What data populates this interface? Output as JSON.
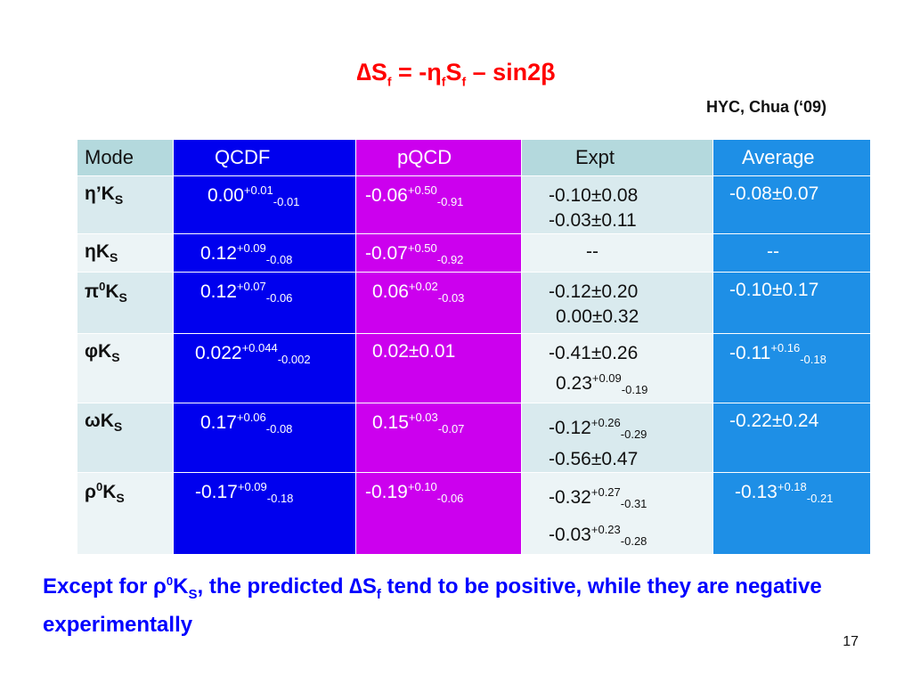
{
  "title": {
    "delta": "∆S",
    "sub1": "f",
    "mid": " = -η",
    "sub2": "f",
    "s": "S",
    "sub3": "f",
    "tail": " – sin2β"
  },
  "attribution": "HYC, Chua (‘09)",
  "table": {
    "headers": [
      "Mode",
      "QCDF",
      "pQCD",
      "Expt",
      "Average"
    ],
    "rows": [
      {
        "mode": "η’K",
        "mode_sub": "S",
        "qcdf": {
          "v": "0.00",
          "up": "+0.01",
          "dn": "-0.01"
        },
        "pqcd": {
          "v": "-0.06",
          "up": "+0.50",
          "dn": "-0.91"
        },
        "expt": [
          "-0.10±0.08",
          "-0.03±0.11"
        ],
        "avg": "-0.08±0.07"
      },
      {
        "mode": "ηK",
        "mode_sub": "S",
        "qcdf": {
          "v": "0.12",
          "up": "+0.09",
          "dn": "-0.08"
        },
        "pqcd": {
          "v": "-0.07",
          "up": "+0.50",
          "dn": "-0.92"
        },
        "expt": [
          "--"
        ],
        "avg": "--"
      },
      {
        "mode": "π",
        "mode_sup": "0",
        "mode2": "K",
        "mode_sub": "S",
        "qcdf": {
          "v": "0.12",
          "up": "+0.07",
          "dn": "-0.06"
        },
        "pqcd": {
          "v": "0.06",
          "up": "+0.02",
          "dn": "-0.03"
        },
        "expt": [
          "-0.12±0.20",
          "0.00±0.32"
        ],
        "avg": "-0.10±0.17"
      },
      {
        "mode": "φK",
        "mode_sub": "S",
        "qcdf": {
          "v": "0.022",
          "up": "+0.044",
          "dn": "-0.002"
        },
        "pqcd_plain": "0.02±0.01",
        "expt1": "-0.41±0.26",
        "expt2": {
          "v": "0.23",
          "up": "+0.09",
          "dn": "-0.19"
        },
        "avg": {
          "v": "-0.11",
          "up": "+0.16",
          "dn": "-0.18"
        }
      },
      {
        "mode": "ωK",
        "mode_sub": "S",
        "qcdf": {
          "v": "0.17",
          "up": "+0.06",
          "dn": "-0.08"
        },
        "pqcd": {
          "v": "0.15",
          "up": "+0.03",
          "dn": "-0.07"
        },
        "expt1": {
          "v": "-0.12",
          "up": "+0.26",
          "dn": "-0.29"
        },
        "expt2": "-0.56±0.47",
        "avg": "-0.22±0.24"
      },
      {
        "mode": "ρ",
        "mode_sup": "0",
        "mode2": "K",
        "mode_sub": "S",
        "qcdf": {
          "v": "-0.17",
          "up": "+0.09",
          "dn": "-0.18"
        },
        "pqcd": {
          "v": "-0.19",
          "up": "+0.10",
          "dn": "-0.06"
        },
        "expt1": {
          "v": "-0.32",
          "up": "+0.27",
          "dn": "-0.31"
        },
        "expt2": {
          "v": "-0.03",
          "up": "+0.23",
          "dn": "-0.28"
        },
        "avg": {
          "v": "-0.13",
          "up": "+0.18",
          "dn": "-0.21"
        }
      }
    ]
  },
  "note": {
    "p1": "Except for ρ",
    "sup": "0",
    "p2": "K",
    "sub": "S",
    "p3": ", the predicted ∆S",
    "sub2": "f",
    "p4": " tend to be positive, while they are negative experimentally"
  },
  "page_number": "17"
}
